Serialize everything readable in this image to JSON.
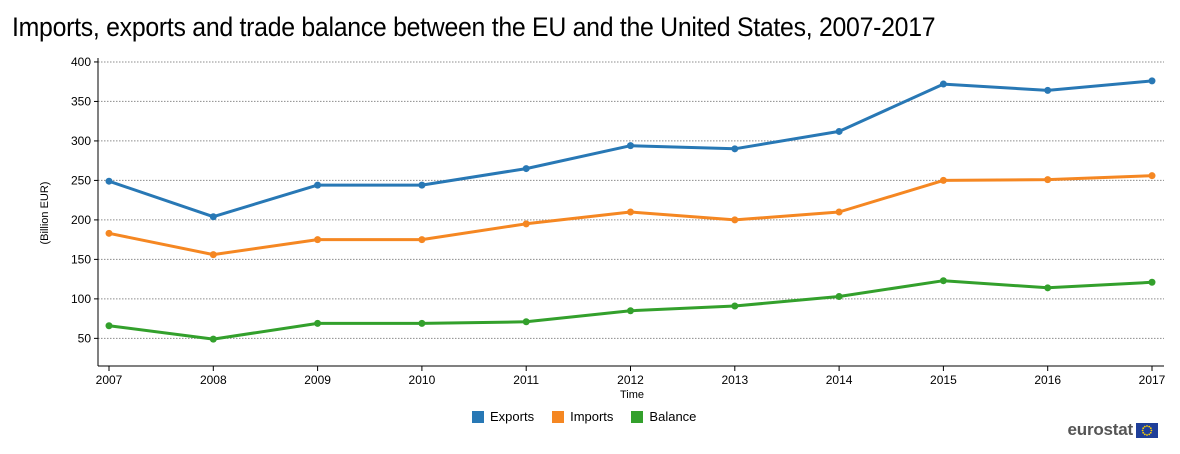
{
  "title": "Imports, exports and trade balance between the EU and the United States, 2007-2017",
  "brand": {
    "text": "eurostat"
  },
  "colors": {
    "exports": "#2878b5",
    "imports": "#f58722",
    "balance": "#33a02c",
    "grid": "#8c8c8c"
  },
  "chart_data": {
    "type": "line",
    "title": "Imports, exports and trade balance between the EU and the United States, 2007-2017",
    "xlabel": "Time",
    "ylabel": "(Billion EUR)",
    "x": [
      "2007",
      "2008",
      "2009",
      "2010",
      "2011",
      "2012",
      "2013",
      "2014",
      "2015",
      "2016",
      "2017"
    ],
    "y_ticks": [
      50,
      100,
      150,
      200,
      250,
      300,
      350,
      400
    ],
    "ylim": [
      15,
      405
    ],
    "grid": true,
    "legend_position": "bottom-center",
    "series": [
      {
        "name": "Exports",
        "color": "#2878b5",
        "values": [
          249,
          204,
          244,
          244,
          265,
          294,
          290,
          312,
          372,
          364,
          376
        ]
      },
      {
        "name": "Imports",
        "color": "#f58722",
        "values": [
          183,
          156,
          175,
          175,
          195,
          210,
          200,
          210,
          250,
          251,
          256
        ]
      },
      {
        "name": "Balance",
        "color": "#33a02c",
        "values": [
          66,
          49,
          69,
          69,
          71,
          85,
          91,
          103,
          123,
          114,
          121
        ]
      }
    ]
  }
}
